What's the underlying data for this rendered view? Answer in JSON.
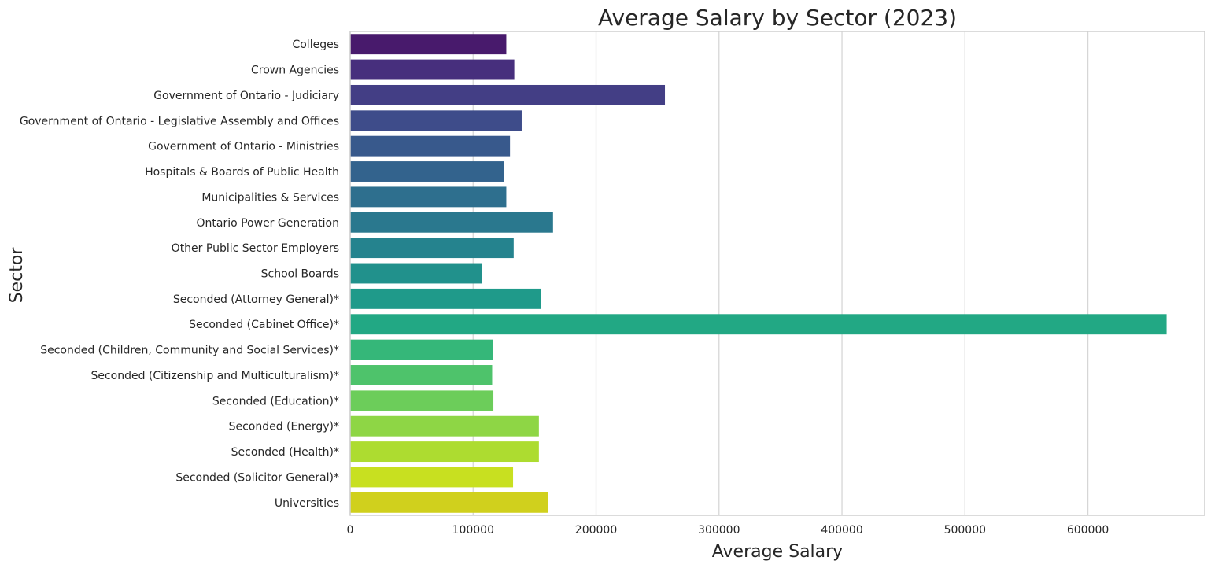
{
  "chart_data": {
    "type": "bar",
    "orientation": "horizontal",
    "title": "Average Salary by Sector (2023)",
    "xlabel": "Average Salary",
    "ylabel": "Sector",
    "xlim": [
      0,
      695000
    ],
    "xticks": [
      0,
      100000,
      200000,
      300000,
      400000,
      500000,
      600000
    ],
    "xtick_labels": [
      "0",
      "100000",
      "200000",
      "300000",
      "400000",
      "500000",
      "600000"
    ],
    "grid": true,
    "legend": "none",
    "categories": [
      "Colleges",
      "Crown Agencies",
      "Government of Ontario - Judiciary",
      "Government of Ontario - Legislative Assembly and Offices",
      "Government of Ontario - Ministries",
      "Hospitals & Boards of Public Health",
      "Municipalities & Services",
      "Ontario Power Generation",
      "Other Public Sector Employers",
      "School Boards",
      "Seconded (Attorney General)*",
      "Seconded (Cabinet Office)*",
      "Seconded (Children, Community and Social Services)*",
      "Seconded (Citizenship and Multiculturalism)*",
      "Seconded (Education)*",
      "Seconded (Energy)*",
      "Seconded (Health)*",
      "Seconded (Solicitor General)*",
      "Universities"
    ],
    "values": [
      127000,
      133500,
      256000,
      139500,
      130000,
      125000,
      127000,
      165000,
      133000,
      107000,
      155500,
      664000,
      116000,
      115500,
      116500,
      153500,
      153500,
      132500,
      161000
    ],
    "colors": [
      "#481a6c",
      "#472f7d",
      "#433e85",
      "#3e4c8a",
      "#38598c",
      "#33638d",
      "#2e6f8e",
      "#2a788e",
      "#25838e",
      "#21918c",
      "#1f9a8a",
      "#22a884",
      "#35b779",
      "#4ec36b",
      "#6ccd5a",
      "#8ed645",
      "#addc30",
      "#c8e020",
      "#d0d01d"
    ]
  }
}
